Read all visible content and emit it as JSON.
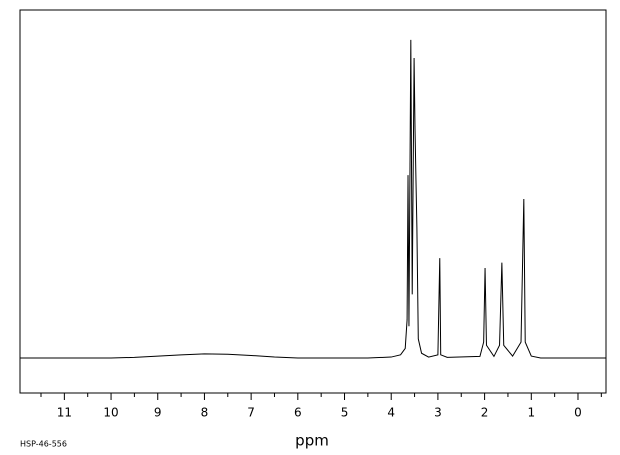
{
  "chart_data": {
    "type": "line",
    "xlabel": "ppm",
    "footnote": "HSP-46-556",
    "color": "#000000",
    "x": [
      11.95,
      10.0,
      9.5,
      9.0,
      8.5,
      8.0,
      7.5,
      7.0,
      6.5,
      6.0,
      4.5,
      4.0,
      3.8,
      3.7,
      3.66,
      3.64,
      3.62,
      3.58,
      3.55,
      3.51,
      3.49,
      3.47,
      3.45,
      3.42,
      3.35,
      3.2,
      3.0,
      2.96,
      2.94,
      2.8,
      2.1,
      2.02,
      1.99,
      1.96,
      1.8,
      1.68,
      1.63,
      1.59,
      1.4,
      1.22,
      1.16,
      1.13,
      1.0,
      0.8,
      -0.6
    ],
    "values": [
      0,
      0,
      0.2,
      0.6,
      1.0,
      1.3,
      1.2,
      0.8,
      0.3,
      0,
      0,
      0.3,
      1,
      3,
      12,
      57.5,
      10,
      100,
      20,
      94.3,
      72,
      56,
      41,
      6,
      1.5,
      0.3,
      1,
      31.4,
      1,
      0.2,
      0.5,
      5,
      28.3,
      4,
      0.5,
      4,
      30,
      4,
      0.6,
      5,
      50,
      5,
      0.6,
      0,
      0
    ],
    "xlim": [
      11.95,
      -0.6
    ],
    "ylim": [
      -11,
      109.4
    ],
    "xticks": [
      11,
      10,
      9,
      8,
      7,
      6,
      5,
      4,
      3,
      2,
      1,
      0
    ],
    "minor_xticks": [
      11.5,
      10.5,
      9.5,
      8.5,
      7.5,
      6.5,
      5.5,
      4.5,
      3.5,
      2.5,
      1.5,
      0.5,
      -0.5
    ]
  }
}
